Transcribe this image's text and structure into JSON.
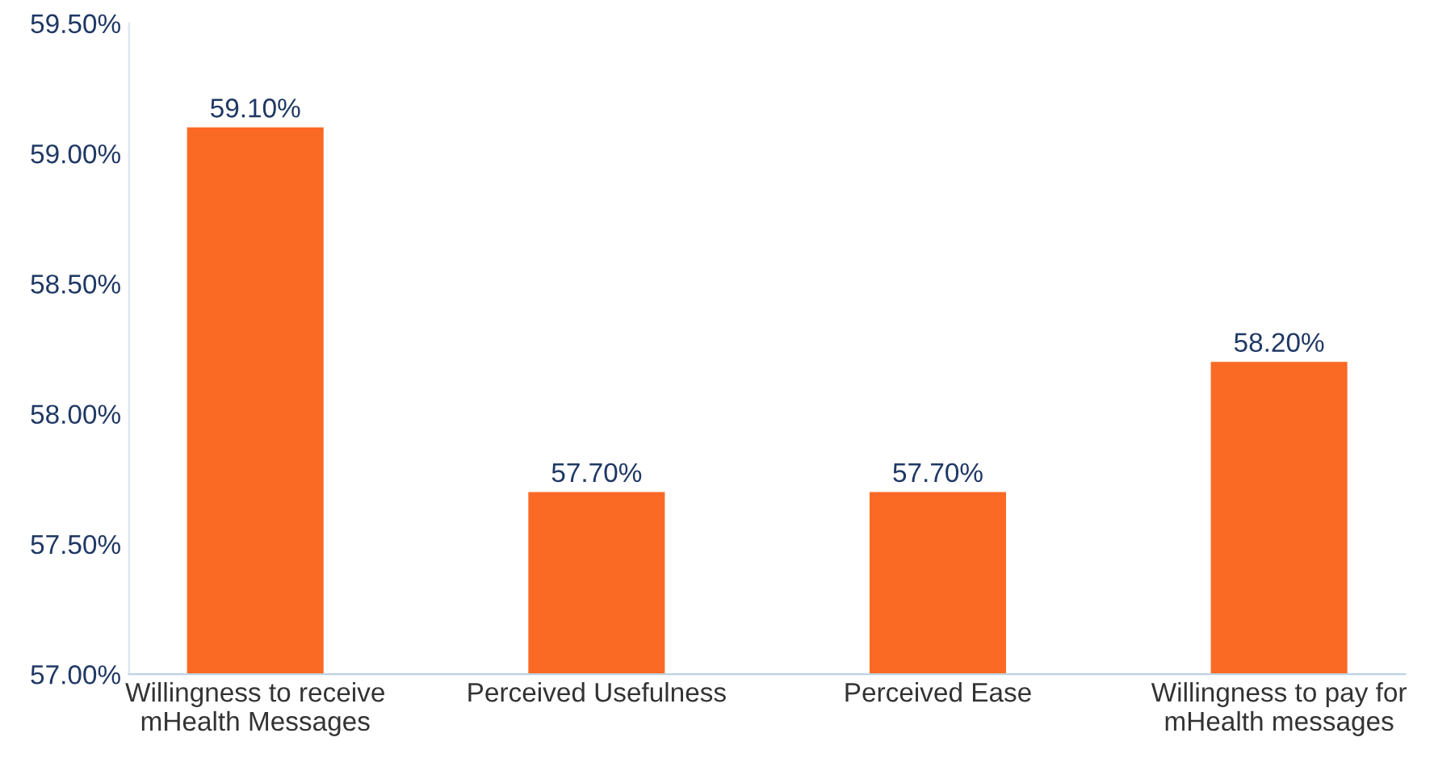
{
  "chart_data": {
    "type": "bar",
    "categories": [
      "Willingness to receive\nmHealth Messages",
      "Perceived Usefulness",
      "Perceived Ease",
      "Willingness to pay for\nmHealth messages"
    ],
    "values": [
      59.1,
      57.7,
      57.7,
      58.2
    ],
    "value_labels": [
      "59.10%",
      "57.70%",
      "57.70%",
      "58.20%"
    ],
    "color": "#fb6a24",
    "ylim": [
      57,
      59.5
    ],
    "yticks": [
      {
        "value": 57,
        "label": "57.00%"
      },
      {
        "value": 57.5,
        "label": "57.50%"
      },
      {
        "value": 58,
        "label": "58.00%"
      },
      {
        "value": 58.5,
        "label": "58.50%"
      },
      {
        "value": 59,
        "label": "59.00%"
      },
      {
        "value": 59.5,
        "label": "59.50%"
      }
    ],
    "grid": false,
    "legend": false
  }
}
